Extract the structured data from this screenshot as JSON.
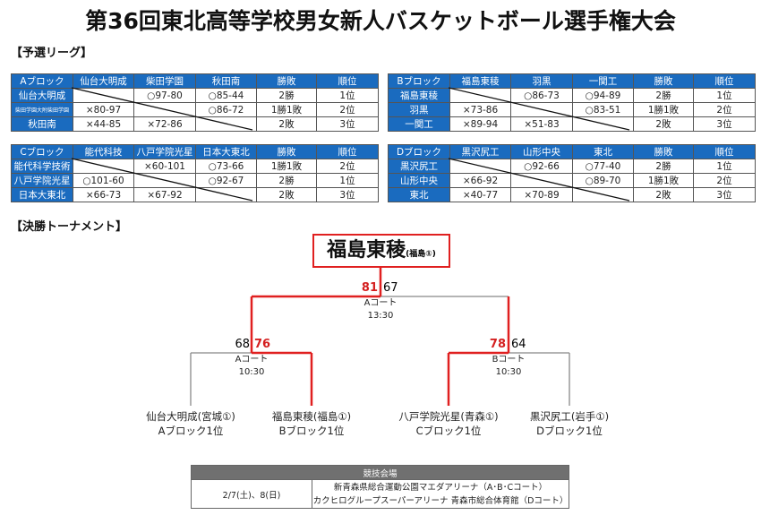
{
  "title": "第36回東北高等学校男女新人バスケットボール選手権大会",
  "league_heading": "【予選リーグ】",
  "tournament_heading": "【決勝トーナメント】",
  "colors": {
    "header": "#1a6bbf",
    "winner_line": "#e02020",
    "venue_header": "#707070"
  },
  "blocks": [
    {
      "header": [
        "Aブロック",
        "仙台大明成",
        "柴田学園",
        "秋田南",
        "勝敗",
        "順位"
      ],
      "rows": [
        [
          "仙台大明成",
          "",
          "○97-80",
          "○85-44",
          "2勝",
          "1位"
        ],
        [
          "柴田学園大附柴田学園",
          "×80-97",
          "",
          "○86-72",
          "1勝1敗",
          "2位"
        ],
        [
          "秋田南",
          "×44-85",
          "×72-86",
          "",
          "2敗",
          "3位"
        ]
      ]
    },
    {
      "header": [
        "Bブロック",
        "福島東稜",
        "羽黒",
        "一関工",
        "勝敗",
        "順位"
      ],
      "rows": [
        [
          "福島東稜",
          "",
          "○86-73",
          "○94-89",
          "2勝",
          "1位"
        ],
        [
          "羽黒",
          "×73-86",
          "",
          "○83-51",
          "1勝1敗",
          "2位"
        ],
        [
          "一関工",
          "×89-94",
          "×51-83",
          "",
          "2敗",
          "3位"
        ]
      ]
    },
    {
      "header": [
        "Cブロック",
        "能代科技",
        "八戸学院光星",
        "日本大東北",
        "勝敗",
        "順位"
      ],
      "rows": [
        [
          "能代科学技術",
          "",
          "×60-101",
          "○73-66",
          "1勝1敗",
          "2位"
        ],
        [
          "八戸学院光星",
          "○101-60",
          "",
          "○92-67",
          "2勝",
          "1位"
        ],
        [
          "日本大東北",
          "×66-73",
          "×67-92",
          "",
          "2敗",
          "3位"
        ]
      ]
    },
    {
      "header": [
        "Dブロック",
        "黒沢尻工",
        "山形中央",
        "東北",
        "勝敗",
        "順位"
      ],
      "rows": [
        [
          "黒沢尻工",
          "",
          "○92-66",
          "○77-40",
          "2勝",
          "1位"
        ],
        [
          "山形中央",
          "×66-92",
          "",
          "○89-70",
          "1勝1敗",
          "2位"
        ],
        [
          "東北",
          "×40-77",
          "×70-89",
          "",
          "2敗",
          "3位"
        ]
      ]
    }
  ],
  "tournament": {
    "champion": {
      "name": "福島東稜",
      "pref": "(福島①)"
    },
    "final": {
      "left_score": "81",
      "right_score": "67",
      "court": "Aコート",
      "time": "13:30"
    },
    "semi_left": {
      "left_score": "68",
      "right_score": "76",
      "court": "Aコート",
      "time": "10:30"
    },
    "semi_right": {
      "left_score": "78",
      "right_score": "64",
      "court": "Bコート",
      "time": "10:30"
    },
    "teams": [
      {
        "name": "仙台大明成(宮城①)",
        "seed": "Aブロック1位"
      },
      {
        "name": "福島東稜(福島①)",
        "seed": "Bブロック1位"
      },
      {
        "name": "八戸学院光星(青森①)",
        "seed": "Cブロック1位"
      },
      {
        "name": "黒沢尻工(岩手①)",
        "seed": "Dブロック1位"
      }
    ]
  },
  "venue": {
    "header": "競技会場",
    "date": "2/7(土)、8(日)",
    "places": [
      "新青森県総合運動公園マエダアリーナ（A･B･Cコート）",
      "カクヒログループスーパーアリーナ 青森市総合体育館（Dコート）"
    ]
  }
}
